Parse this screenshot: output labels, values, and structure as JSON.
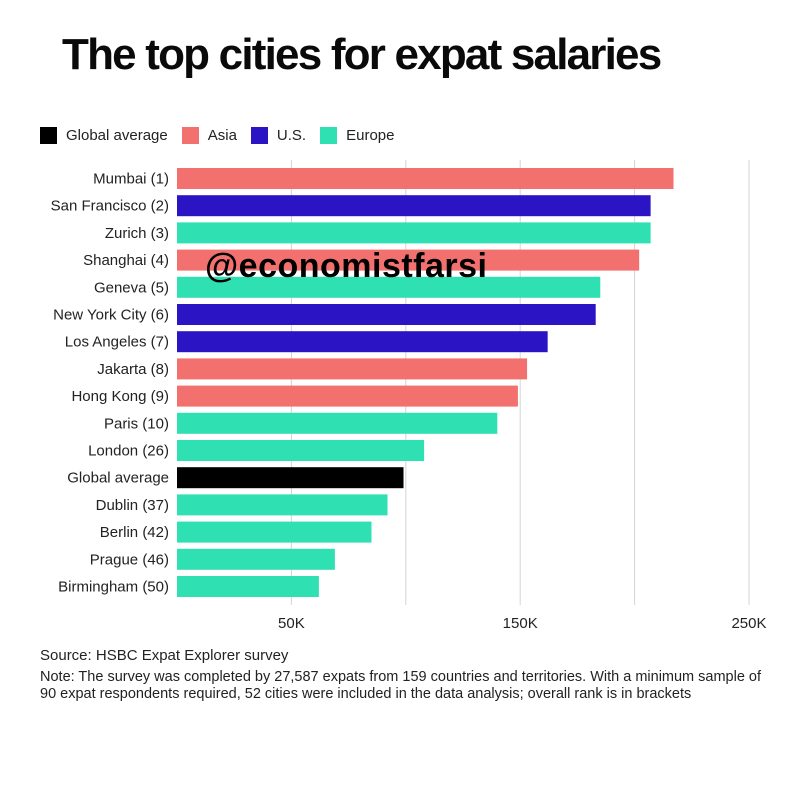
{
  "title": "The top cities for expat salaries",
  "legend": [
    {
      "label": "Global average",
      "color": "#000000"
    },
    {
      "label": "Asia",
      "color": "#f2706e"
    },
    {
      "label": "U.S.",
      "color": "#2b14c4"
    },
    {
      "label": "Europe",
      "color": "#2ee0b2"
    }
  ],
  "watermark": "@economistfarsi",
  "source": "Source: HSBC Expat Explorer survey",
  "note": "Note: The survey was completed by 27,587 expats from 159 countries and territories. With a minimum sample of 90 expat respondents required, 52 cities were included in the data analysis; overall rank is in brackets",
  "chart_data": {
    "type": "bar",
    "orientation": "horizontal",
    "title": "The top cities for expat salaries",
    "xlabel": "",
    "ylabel": "",
    "xlim": [
      0,
      250000
    ],
    "x_ticks": [
      {
        "value": 50000,
        "label": "50K"
      },
      {
        "value": 150000,
        "label": "150K"
      },
      {
        "value": 250000,
        "label": "250K"
      }
    ],
    "grid": "vertical gridlines",
    "legend_position": "top-left",
    "categories": [
      "Mumbai (1)",
      "San Francisco (2)",
      "Zurich (3)",
      "Shanghai (4)",
      "Geneva (5)",
      "New York City (6)",
      "Los Angeles (7)",
      "Jakarta (8)",
      "Hong Kong (9)",
      "Paris (10)",
      "London (26)",
      "Global average",
      "Dublin (37)",
      "Berlin (42)",
      "Prague (46)",
      "Birmingham (50)"
    ],
    "values": [
      217000,
      207000,
      207000,
      202000,
      185000,
      183000,
      162000,
      153000,
      149000,
      140000,
      108000,
      99000,
      92000,
      85000,
      69000,
      62000
    ],
    "groups": [
      "Asia",
      "U.S.",
      "Europe",
      "Asia",
      "Europe",
      "U.S.",
      "U.S.",
      "Asia",
      "Asia",
      "Europe",
      "Europe",
      "Global average",
      "Europe",
      "Europe",
      "Europe",
      "Europe"
    ]
  }
}
